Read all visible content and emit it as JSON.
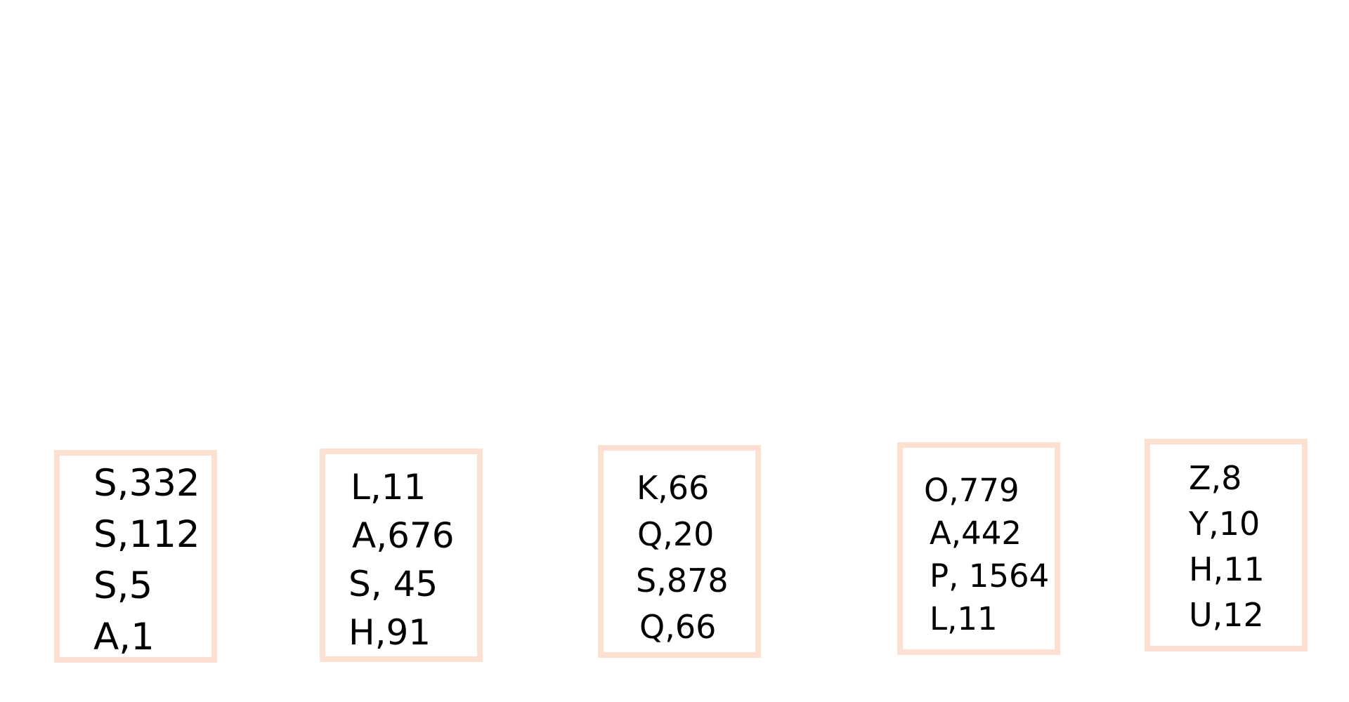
{
  "cards": [
    {
      "lines": [
        "S,332",
        "S,112",
        "S,5",
        "A,1"
      ]
    },
    {
      "lines": [
        "L,11",
        "A,676",
        "S, 45",
        "H,91"
      ]
    },
    {
      "lines": [
        "K,66",
        "Q,20",
        "S,878",
        "Q,66"
      ]
    },
    {
      "lines": [
        "O,779",
        "A,442",
        "P, 1564",
        "L,11"
      ]
    },
    {
      "lines": [
        "Z,8",
        "Y,10",
        "H,11",
        "U,12"
      ]
    }
  ],
  "colors": {
    "card_border": "#fce0d1",
    "text": "#000000",
    "background": "#ffffff"
  }
}
